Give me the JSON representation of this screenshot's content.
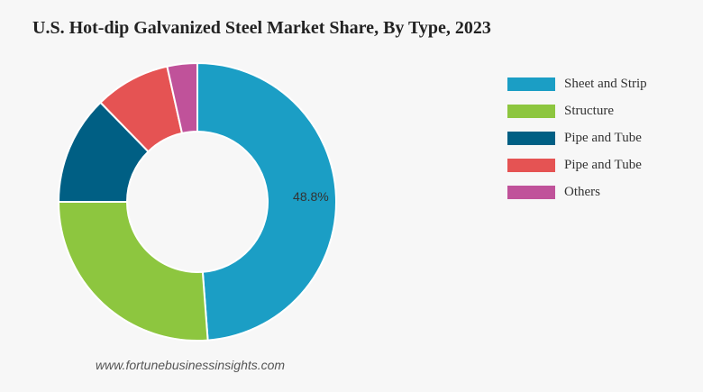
{
  "chart_data": {
    "type": "pie",
    "variant": "donut",
    "title": "U.S. Hot-dip Galvanized Steel Market Share, By Type, 2023",
    "categories": [
      "Sheet and Strip",
      "Structure",
      "Pipe and Tube",
      "Pipe and Tube",
      "Others"
    ],
    "values": [
      48.8,
      26.2,
      12.7,
      8.8,
      3.5
    ],
    "colors": [
      "#1b9ec5",
      "#8dc63f",
      "#005f84",
      "#e55353",
      "#c0529a"
    ],
    "data_labels": [
      {
        "index": 0,
        "text": "48.8%"
      }
    ],
    "legend_position": "right"
  },
  "source": "www.fortunebusinessinsights.com"
}
